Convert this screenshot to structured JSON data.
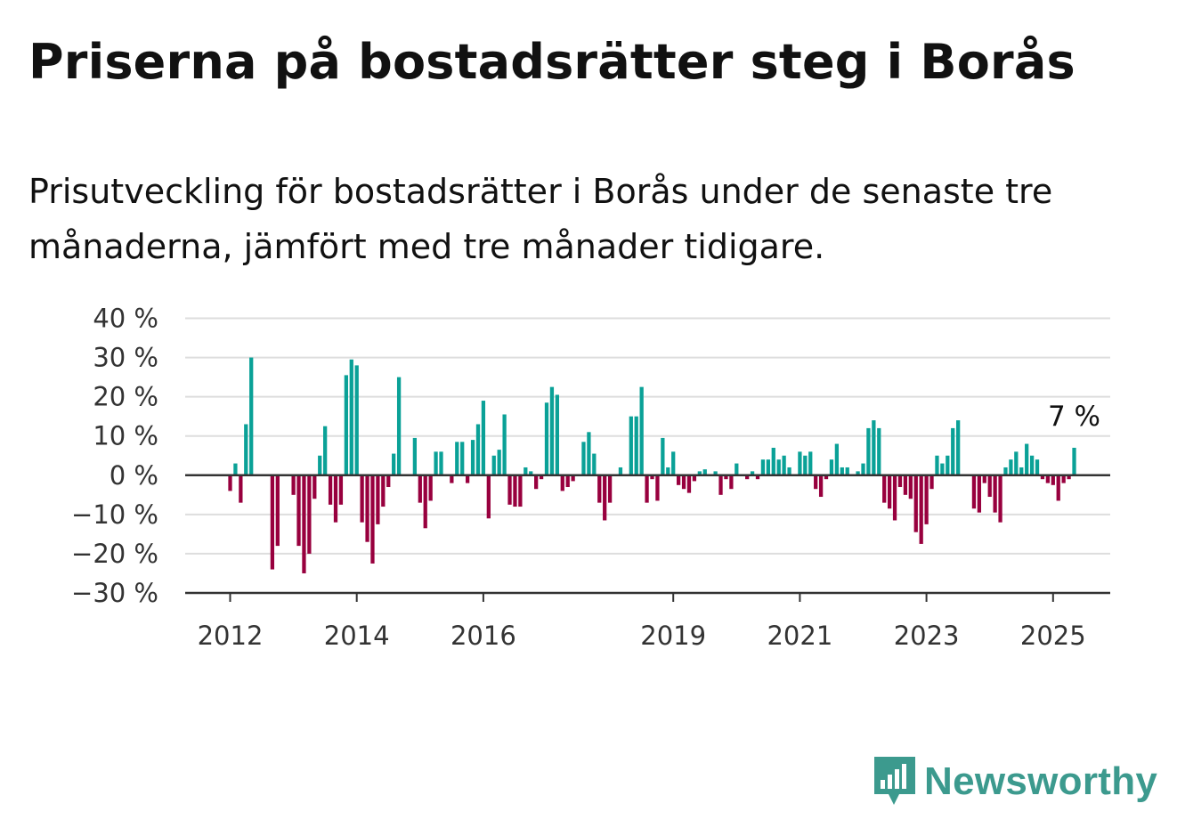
{
  "title": "Priserna på bostadsrätter steg i Borås",
  "subtitle": "Prisutveckling för bostadsrätter i Borås under de senaste tre månaderna, jämfört med tre månader tidigare.",
  "brand": {
    "name": "Newsworthy",
    "icon": "newsworthy-bar-chart-logo-icon"
  },
  "colors": {
    "positive": "#0aa197",
    "negative": "#98003e",
    "brand": "#3c9a8e"
  },
  "chart_data": {
    "type": "bar",
    "title": "Priserna på bostadsrätter steg i Borås",
    "xlabel": "",
    "ylabel": "",
    "ylim": [
      -30,
      40
    ],
    "yticks": [
      40,
      30,
      20,
      10,
      0,
      -10,
      -20,
      -30
    ],
    "ytick_labels": [
      "40 %",
      "30 %",
      "20 %",
      "10 %",
      "0 %",
      "−10 %",
      "−20 %",
      "−30 %"
    ],
    "x_start": "2012-01",
    "xticks": [
      {
        "year": 2012,
        "label": "2012"
      },
      {
        "year": 2014,
        "label": "2014"
      },
      {
        "year": 2016,
        "label": "2016"
      },
      {
        "year": 2019,
        "label": "2019"
      },
      {
        "year": 2021,
        "label": "2021"
      },
      {
        "year": 2023,
        "label": "2023"
      },
      {
        "year": 2025,
        "label": "2025"
      }
    ],
    "grid": true,
    "annotation": {
      "text": "7 %",
      "value": 7
    },
    "values": [
      -4,
      3,
      -7,
      13,
      30,
      null,
      null,
      null,
      -24,
      -18,
      null,
      null,
      -5,
      -18,
      -25,
      -20,
      -6,
      5,
      12.5,
      -7.5,
      -12,
      -7.5,
      25.5,
      29.5,
      28,
      -12,
      -17,
      -22.5,
      -12.5,
      -8,
      -3,
      5.5,
      25,
      null,
      null,
      9.5,
      -7,
      -13.5,
      -6.5,
      6,
      6,
      null,
      -2,
      8.5,
      8.5,
      -2,
      9,
      13,
      19,
      -11,
      5,
      6.5,
      15.5,
      -7.5,
      -8,
      -8,
      2,
      1,
      -3.5,
      -1,
      18.5,
      22.5,
      20.5,
      -4,
      -3,
      -1.5,
      null,
      8.5,
      11,
      5.5,
      -7,
      -11.5,
      -7,
      null,
      2,
      null,
      15,
      15,
      22.5,
      -7,
      -1,
      -6.5,
      9.5,
      2,
      6,
      -2.5,
      -3.5,
      -4.5,
      -1.5,
      1,
      1.5,
      null,
      1,
      -5,
      -1,
      -3.5,
      3,
      null,
      -1,
      1,
      -1,
      4,
      4,
      7,
      4,
      5,
      2,
      null,
      6,
      5,
      6,
      -3.5,
      -5.5,
      -1,
      4,
      8,
      2,
      2,
      null,
      1,
      3,
      12,
      14,
      12,
      -7,
      -8.5,
      -11.5,
      -3,
      -5,
      -6,
      -14.5,
      -17.5,
      -12.5,
      -3.5,
      5,
      3,
      5,
      12,
      14,
      null,
      null,
      -8.5,
      -9.5,
      -2,
      -5.5,
      -9.5,
      -12,
      2,
      4,
      6,
      2,
      8,
      5,
      4,
      -1,
      -2,
      -2.5,
      -6.5,
      -2,
      -1,
      7
    ]
  }
}
